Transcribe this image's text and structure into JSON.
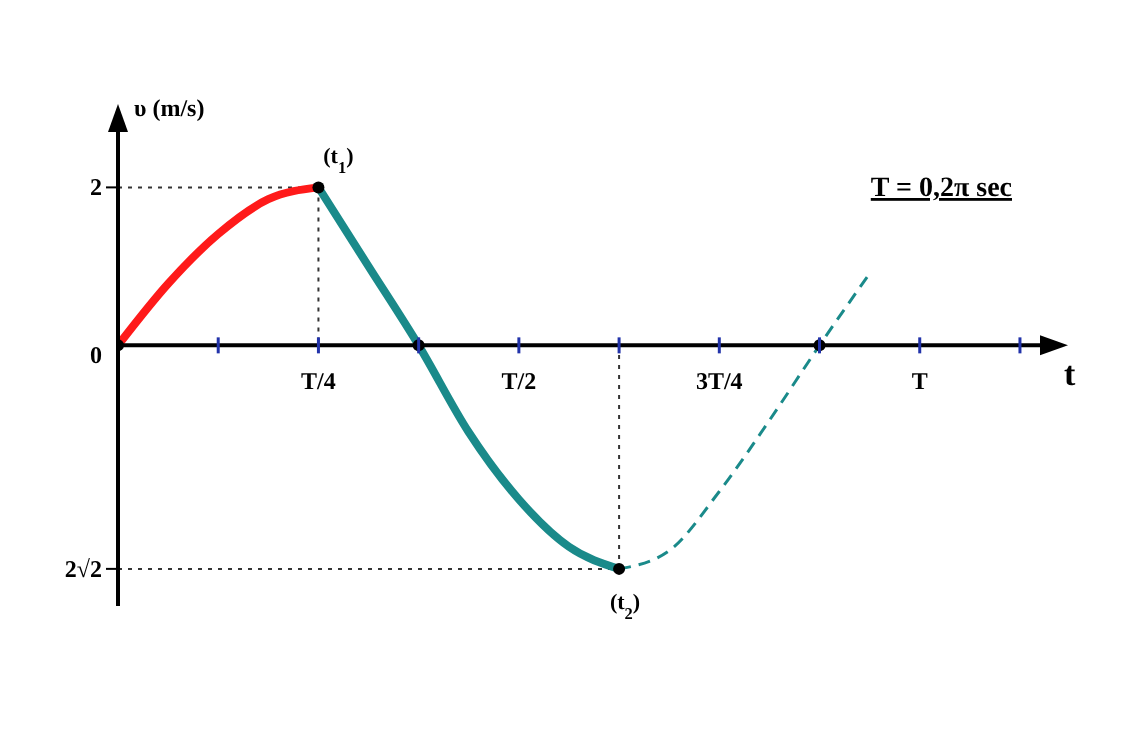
{
  "chart_data": {
    "type": "line",
    "xlabel": "t",
    "ylabel": "υ (m/s)",
    "categories": [
      null,
      null,
      null,
      null,
      "T/4",
      null,
      null,
      null,
      "T/2",
      null,
      null,
      null,
      "3T/4",
      null,
      null,
      null,
      "T",
      null,
      null
    ],
    "ylim": [
      -3.3,
      2.6
    ],
    "yticks": [
      2,
      0,
      {
        "value": -2.83,
        "label": "2√2"
      }
    ],
    "grid": false,
    "legend": false,
    "series": [
      {
        "color": "#ff1a1a",
        "line_style": "solid",
        "values": [
          0,
          0.78,
          1.41,
          1.85,
          2,
          null,
          null,
          null,
          null,
          null,
          null,
          null,
          null,
          null,
          null,
          null,
          null,
          null,
          null
        ]
      },
      {
        "color": "#1a8a8a",
        "line_style": "solid",
        "values": [
          null,
          null,
          null,
          null,
          2,
          1.0,
          0,
          -1.1,
          -1.95,
          -2.55,
          -2.83,
          null,
          null,
          null,
          null,
          null,
          null,
          null,
          null
        ]
      },
      {
        "color": "#1a8a8a",
        "line_style": "dashed",
        "values": [
          null,
          null,
          null,
          null,
          null,
          null,
          null,
          null,
          null,
          null,
          -2.83,
          -2.6,
          -1.85,
          -0.95,
          0,
          0.91,
          null,
          null,
          null
        ]
      },
      {
        "type": "scatter",
        "color": "#000000",
        "marker": "circle",
        "values": [
          0,
          null,
          null,
          null,
          2,
          null,
          0,
          null,
          null,
          null,
          -2.83,
          null,
          null,
          null,
          0,
          null,
          null,
          null,
          null
        ]
      }
    ],
    "ref_lines": [
      {
        "axis": "y",
        "value": 2,
        "line_style": "dotted",
        "color": "#333333"
      },
      {
        "axis": "y",
        "value": -2.83,
        "line_style": "dotted",
        "color": "#333333"
      }
    ],
    "annotations": [
      {
        "text": "(t$_{1}$)",
        "x": "T/4",
        "y": 2
      },
      {
        "text": "(t$_{2}$)",
        "y": -2.83
      },
      "T = 0,2π sec"
    ]
  }
}
